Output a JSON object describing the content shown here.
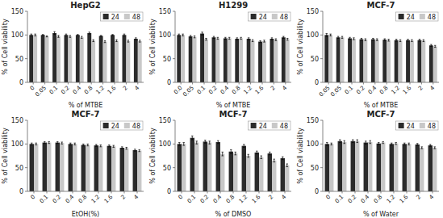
{
  "chart_data": [
    {
      "type": "bar",
      "title": "HepG2",
      "xlabel": "% of MTBE",
      "ylabel": "% of Cell viability",
      "categories": [
        "0",
        "0.05",
        "0.1",
        "0.2",
        "0.4",
        "0.8",
        "1.2",
        "1.6",
        "2",
        "4"
      ],
      "series": [
        {
          "name": "24",
          "color": "#2b2b2b",
          "values": [
            100,
            100,
            104,
            100,
            100,
            104,
            98,
            100,
            100,
            92
          ],
          "errors": [
            2,
            1,
            3,
            2,
            1,
            2,
            1,
            1,
            2,
            2
          ]
        },
        {
          "name": "48",
          "color": "#c8c8c8",
          "values": [
            100,
            97,
            97,
            97,
            95,
            88,
            86,
            88,
            87,
            87
          ],
          "errors": [
            2,
            1,
            2,
            2,
            2,
            2,
            2,
            2,
            2,
            2
          ]
        }
      ],
      "ylim": [
        0,
        150
      ],
      "yticks": [
        0,
        50,
        100,
        150
      ],
      "legend": "upper right"
    },
    {
      "type": "bar",
      "title": "H1299",
      "xlabel": "% of MTBE",
      "ylabel": "% of Cell viability",
      "categories": [
        "0.0",
        "0.05",
        "0.1",
        "0.2",
        "0.4",
        "0.8",
        "1.2",
        "1.6",
        "2",
        "4"
      ],
      "series": [
        {
          "name": "24",
          "color": "#2b2b2b",
          "values": [
            100,
            97,
            103,
            95,
            93,
            92,
            92,
            86,
            92,
            95
          ],
          "errors": [
            2,
            2,
            3,
            2,
            2,
            2,
            2,
            2,
            2,
            2
          ]
        },
        {
          "name": "48",
          "color": "#c8c8c8",
          "values": [
            100,
            96,
            91,
            93,
            93,
            93,
            88,
            87,
            90,
            91
          ],
          "errors": [
            2,
            2,
            2,
            2,
            2,
            2,
            2,
            2,
            2,
            2
          ]
        }
      ],
      "ylim": [
        0,
        150
      ],
      "yticks": [
        0,
        50,
        100,
        150
      ],
      "legend": "upper right"
    },
    {
      "type": "bar",
      "title": "MCF-7",
      "xlabel": "% of MTBE",
      "ylabel": "% of Cell viability",
      "categories": [
        "0.05",
        "0.05",
        "0.1",
        "0.2",
        "0.4",
        "0.8",
        "1.2",
        "1.6",
        "2",
        "4"
      ],
      "series": [
        {
          "name": "24",
          "color": "#2b2b2b",
          "values": [
            100,
            95,
            93,
            91,
            91,
            90,
            89,
            89,
            89,
            78
          ],
          "errors": [
            3,
            2,
            2,
            2,
            2,
            2,
            2,
            2,
            2,
            2
          ]
        },
        {
          "name": "48",
          "color": "#c8c8c8",
          "values": [
            100,
            95,
            92,
            90,
            90,
            89,
            88,
            88,
            88,
            76
          ],
          "errors": [
            2,
            2,
            2,
            2,
            2,
            2,
            2,
            2,
            2,
            2
          ]
        }
      ],
      "ylim": [
        0,
        150
      ],
      "yticks": [
        0,
        50,
        100,
        150
      ],
      "legend": "upper right"
    },
    {
      "type": "bar",
      "title": "MCF-7",
      "xlabel": "EtOH(%)",
      "ylabel": "% of Cell viability",
      "categories": [
        "0",
        "0.1",
        "0.2",
        "0.4",
        "0.8",
        "1.2",
        "1.6",
        "2",
        "4"
      ],
      "series": [
        {
          "name": "24",
          "color": "#2b2b2b",
          "values": [
            100,
            103,
            103,
            100,
            98,
            97,
            96,
            92,
            87
          ],
          "errors": [
            2,
            2,
            2,
            2,
            2,
            2,
            2,
            2,
            2
          ]
        },
        {
          "name": "48",
          "color": "#c8c8c8",
          "values": [
            100,
            103,
            102,
            100,
            98,
            96,
            95,
            91,
            86
          ],
          "errors": [
            2,
            2,
            2,
            2,
            2,
            2,
            2,
            2,
            2
          ]
        }
      ],
      "ylim": [
        0,
        150
      ],
      "yticks": [
        0,
        50,
        100,
        150
      ],
      "legend": "upper right"
    },
    {
      "type": "bar",
      "title": "MCF-7",
      "xlabel": "% of DMSO",
      "ylabel": "% of Cell viability",
      "categories": [
        "0",
        "0.1",
        "0.2",
        "0.4",
        "0.8",
        "1.2",
        "1.6",
        "2",
        "4"
      ],
      "series": [
        {
          "name": "24",
          "color": "#2b2b2b",
          "values": [
            100,
            113,
            105,
            104,
            84,
            96,
            82,
            80,
            70
          ],
          "errors": [
            3,
            4,
            3,
            3,
            4,
            3,
            3,
            3,
            3
          ]
        },
        {
          "name": "48",
          "color": "#c8c8c8",
          "values": [
            100,
            103,
            103,
            79,
            80,
            75,
            72,
            65,
            55
          ],
          "errors": [
            3,
            3,
            3,
            4,
            3,
            3,
            3,
            3,
            3
          ]
        }
      ],
      "ylim": [
        0,
        150
      ],
      "yticks": [
        0,
        50,
        100,
        150
      ],
      "legend": "upper right"
    },
    {
      "type": "bar",
      "title": "MCF-7",
      "xlabel": "% of Water",
      "ylabel": "% of Cell viability",
      "categories": [
        "0",
        "0.1",
        "0.2",
        "0.4",
        "0.8",
        "1.2",
        "1.6",
        "2",
        "4"
      ],
      "series": [
        {
          "name": "24",
          "color": "#2b2b2b",
          "values": [
            100,
            106,
            106,
            103,
            101,
            100,
            100,
            99,
            97
          ],
          "errors": [
            3,
            3,
            3,
            3,
            2,
            2,
            2,
            2,
            2
          ]
        },
        {
          "name": "48",
          "color": "#c8c8c8",
          "values": [
            100,
            104,
            106,
            104,
            103,
            101,
            100,
            92,
            92
          ],
          "errors": [
            2,
            3,
            3,
            3,
            2,
            2,
            2,
            2,
            2
          ]
        }
      ],
      "ylim": [
        0,
        150
      ],
      "yticks": [
        0,
        50,
        100,
        150
      ],
      "legend": "upper right"
    }
  ]
}
